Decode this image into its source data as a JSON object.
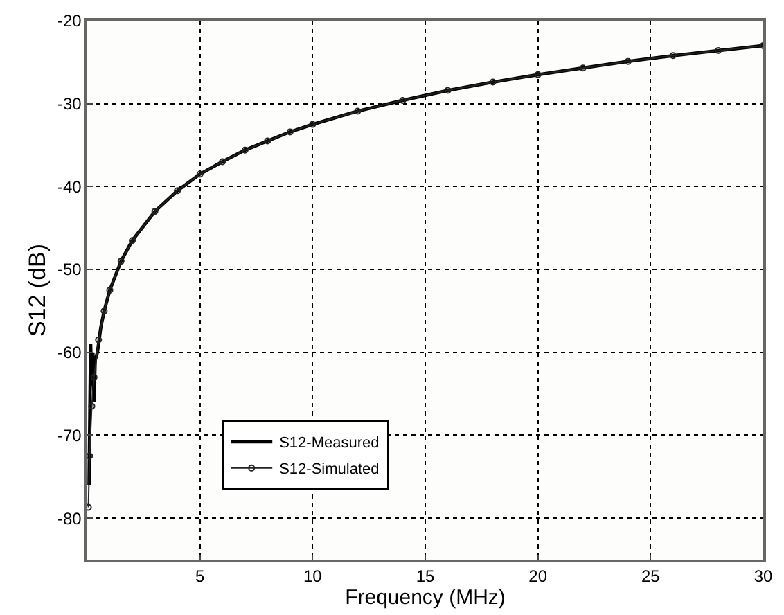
{
  "chart_data": {
    "type": "line",
    "xlabel": "Frequency (MHz)",
    "ylabel": "S12 (dB)",
    "xlim": [
      0,
      30
    ],
    "xticks": [
      5,
      10,
      15,
      20,
      25,
      30
    ],
    "ylim": [
      -85,
      -20
    ],
    "yticks": [
      -80,
      -70,
      -60,
      -50,
      -40,
      -30,
      -20
    ],
    "grid": true,
    "legend": "bottom left",
    "series": [
      {
        "name": "S12-Measured",
        "color": "#000000",
        "marker": "none",
        "x": [
          0.08,
          0.12,
          0.15,
          0.2,
          0.25,
          0.3,
          0.35,
          0.45,
          0.6,
          0.75,
          1,
          1.5,
          2,
          3,
          4,
          5,
          6,
          7,
          8,
          9,
          10,
          12,
          14,
          16,
          18,
          20,
          22,
          24,
          26,
          28,
          30
        ],
        "values": [
          -76,
          -66,
          -59,
          -64,
          -60,
          -66,
          -61,
          -60,
          -57,
          -55,
          -52.5,
          -49,
          -46.5,
          -43,
          -40.5,
          -38.5,
          -37,
          -35.6,
          -34.5,
          -33.4,
          -32.5,
          -30.9,
          -29.6,
          -28.4,
          -27.4,
          -26.5,
          -25.7,
          -24.9,
          -24.2,
          -23.6,
          -23
        ]
      },
      {
        "name": "S12-Simulated",
        "color": "#222222",
        "marker": "circle",
        "x": [
          0.05,
          0.1,
          0.2,
          0.3,
          0.5,
          0.75,
          1,
          1.5,
          2,
          3,
          4,
          5,
          6,
          7,
          8,
          9,
          10,
          12,
          14,
          16,
          18,
          20,
          22,
          24,
          26,
          28,
          30
        ],
        "values": [
          -78.7,
          -72.5,
          -66.5,
          -63,
          -58.5,
          -55,
          -52.5,
          -49,
          -46.5,
          -43,
          -40.5,
          -38.5,
          -37,
          -35.6,
          -34.5,
          -33.4,
          -32.5,
          -30.9,
          -29.6,
          -28.4,
          -27.4,
          -26.5,
          -25.7,
          -24.9,
          -24.2,
          -23.6,
          -23
        ]
      }
    ]
  }
}
